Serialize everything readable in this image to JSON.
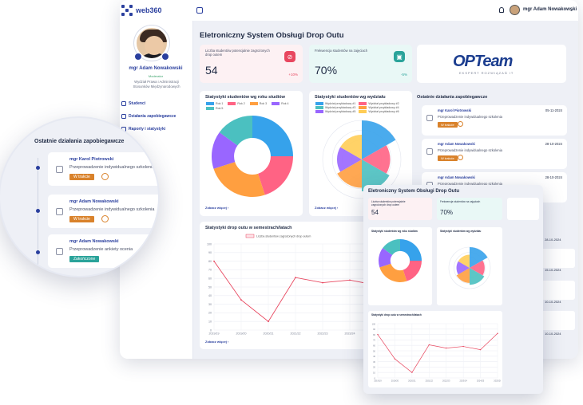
{
  "app": {
    "name": "web360"
  },
  "header": {
    "user_name": "mgr Adam Nowakowski"
  },
  "profile": {
    "name": "mgr Adam Nowakowski",
    "role": "Moderator",
    "department": "Wydział Prawa i Administracji Stosunków Międzynarodowych"
  },
  "sidebar": {
    "items": [
      {
        "label": "Studenci"
      },
      {
        "label": "Działania zapobiegawcze"
      },
      {
        "label": "Raporty i statystyki"
      }
    ]
  },
  "page": {
    "title": "Eletroniczny System Obsługi Drop Outu"
  },
  "kpis": [
    {
      "label": "Liczba studentów potencjalnie zagrożonych drop outem",
      "value": "54",
      "delta": "+10%",
      "color": "#e8475f"
    },
    {
      "label": "Frekwencja studentów na zajęciach",
      "value": "70%",
      "delta": "-5%",
      "color": "#2aa39a"
    }
  ],
  "partner": {
    "logo_text": "OPTeam",
    "tagline": "EKSPERT ROZWIĄZAŃ IT"
  },
  "cards": {
    "by_year": {
      "title": "Statystyki studentów wg roku studiów",
      "link": "Zobacz więcej"
    },
    "by_faculty": {
      "title": "Statystyki studentów wg wydziału",
      "link": "Zobacz więcej"
    },
    "activities": {
      "title": "Ostatnie działania zapobiegawcze"
    },
    "dropout": {
      "title": "Statystyki drop outu w semestrach/latach",
      "link": "Zobacz więcej"
    }
  },
  "legend_years": [
    "Rok 1",
    "Rok 2",
    "Rok 3",
    "Rok 4",
    "Rok 5"
  ],
  "legend_faculty": [
    "Wydział przykładowy #1",
    "Wydział przykładowy #2",
    "Wydział przykładowy #3",
    "Wydział przykładowy #4",
    "Wydział przykładowy #5",
    "Wydział przykładowy #6"
  ],
  "activities": [
    {
      "name": "mgr Karol Piotrowski",
      "date": "05-11-2024",
      "desc": "Przeprowadzenie indywidualnego szkolenia",
      "status": "W trakcie"
    },
    {
      "name": "mgr Adam Nowakowski",
      "date": "28-10-2024",
      "desc": "Przeprowadzenie indywidualnego szkolenia",
      "status": "W trakcie"
    },
    {
      "name": "mgr Adam Nowakowski",
      "date": "28-10-2024",
      "desc": "Przeprowadzenie indywidualnego szkolenia",
      "status": "W trakcie"
    }
  ],
  "magnifier": {
    "title": "Ostatnie działania zapobiegawcze",
    "items": [
      {
        "name": "mgr Karol Piotrowski",
        "desc": "Przeprowadzenie indywidualnego szkolenia",
        "status": "W trakcie"
      },
      {
        "name": "mgr Adam Nowakowski",
        "desc": "Przeprowadzenie indywidualnego szkolenia",
        "status": "W trakcie"
      },
      {
        "name": "mgr Adam Nowakowski",
        "desc": "Przeprowadzenie ankiety ocenia",
        "status": "Zakończone"
      }
    ]
  },
  "right_dates": [
    "28-10-2024",
    "15-10-2024",
    "10-10-2024",
    "10-10-2024",
    "10-10-2024"
  ],
  "colors": {
    "brand": "#2a3f9e",
    "pink": "#e8475f",
    "teal": "#2aa39a",
    "orange": "#d9822b"
  },
  "chart_data": [
    {
      "type": "pie",
      "title": "Statystyki studentów wg roku studiów",
      "categories": [
        "Rok 1",
        "Rok 2",
        "Rok 3",
        "Rok 4",
        "Rok 5"
      ],
      "values": [
        25,
        20,
        25,
        15,
        15
      ],
      "colors": [
        "#36a2eb",
        "#ff6384",
        "#ff9f40",
        "#9966ff",
        "#4bc0c0"
      ]
    },
    {
      "type": "pie",
      "title": "Statystyki studentów wg wydziału",
      "categories": [
        "Wydział przykładowy #1",
        "Wydział przykładowy #2",
        "Wydział przykładowy #3",
        "Wydział przykładowy #4",
        "Wydział przykładowy #5",
        "Wydział przykładowy #6"
      ],
      "values": [
        30,
        15,
        20,
        15,
        10,
        10
      ],
      "colors": [
        "#36a2eb",
        "#ff6384",
        "#4bc0c0",
        "#ff9f40",
        "#9966ff",
        "#ffcd56"
      ]
    },
    {
      "type": "line",
      "title": "Statystyki drop outu w semestrach/latach",
      "series": [
        {
          "name": "Liczba studentów zagrożonych drop outem",
          "values": [
            80,
            35,
            10,
            61,
            55,
            58,
            52,
            82
          ]
        }
      ],
      "categories": [
        "2019/19",
        "2019/20",
        "2020/21",
        "2021/22",
        "2022/23",
        "2023/24",
        "2024/25",
        "2025/26"
      ],
      "ylim": [
        0,
        100
      ]
    }
  ]
}
